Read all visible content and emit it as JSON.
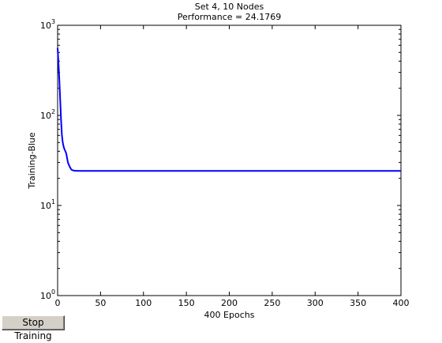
{
  "chart_data": {
    "type": "line",
    "title": "Set 4, 10 Nodes",
    "subtitle": "Performance = 24.1769",
    "xlabel": "400 Epochs",
    "ylabel": "Training-Blue",
    "xlim": [
      0,
      400
    ],
    "ylim": [
      1,
      1000
    ],
    "yscale": "log",
    "grid": false,
    "xticks": [
      0,
      50,
      100,
      150,
      200,
      250,
      300,
      350,
      400
    ],
    "yticks": [
      {
        "base": "10",
        "exp": "0",
        "value": 1
      },
      {
        "base": "10",
        "exp": "1",
        "value": 10
      },
      {
        "base": "10",
        "exp": "2",
        "value": 100
      },
      {
        "base": "10",
        "exp": "3",
        "value": 1000
      }
    ],
    "series": [
      {
        "color": "#0000ff",
        "x": [
          0,
          1,
          2,
          3,
          4,
          5,
          6,
          7,
          8,
          9,
          10,
          12,
          14,
          16,
          18,
          20,
          25,
          50,
          100,
          200,
          300,
          400
        ],
        "y": [
          560,
          380,
          250,
          150,
          90,
          60,
          50,
          45,
          42,
          40,
          38,
          30,
          27,
          25,
          24.5,
          24.3,
          24.2,
          24.18,
          24.18,
          24.18,
          24.18,
          24.1769
        ]
      }
    ]
  },
  "controls": {
    "stop_label": "Stop Training"
  }
}
